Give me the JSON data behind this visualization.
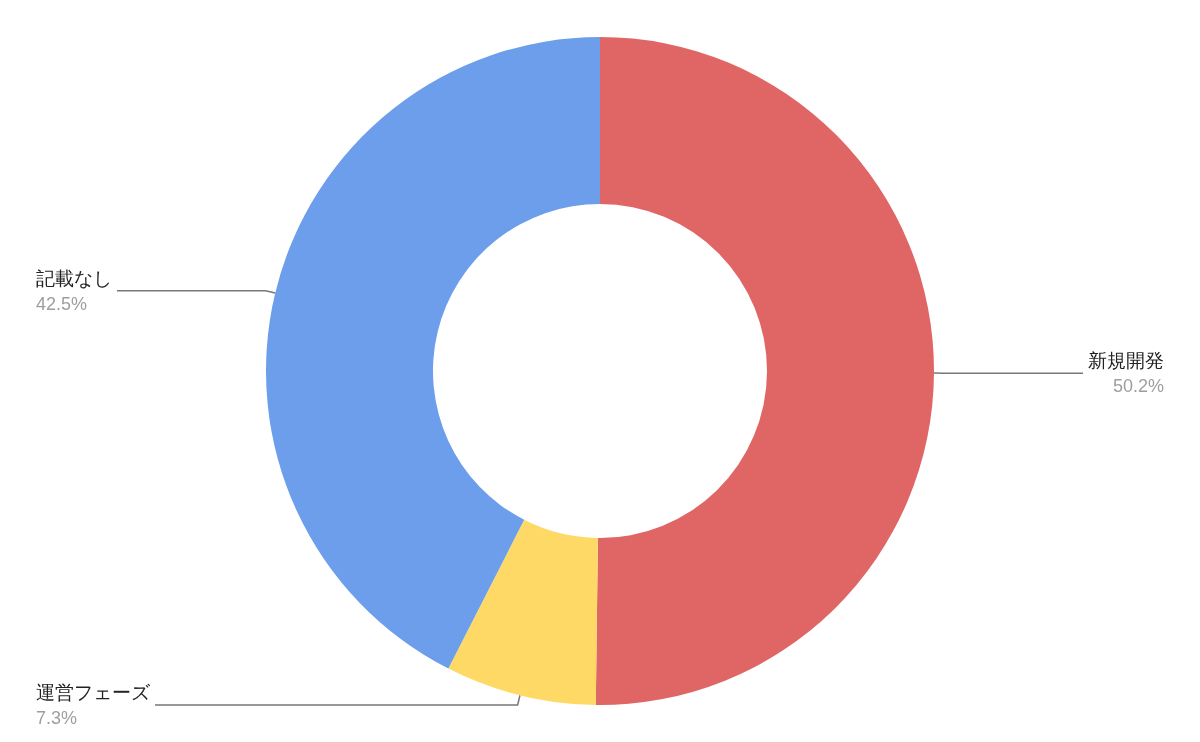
{
  "chart_data": {
    "type": "donut",
    "categories": [
      "新規開発",
      "運営フェーズ",
      "記載なし"
    ],
    "values": [
      50.2,
      7.3,
      42.5
    ],
    "colors": [
      "#e06666",
      "#ffd966",
      "#6d9eeb"
    ],
    "value_labels": [
      "50.2%",
      "7.3%",
      "42.5%"
    ],
    "legend": false
  }
}
